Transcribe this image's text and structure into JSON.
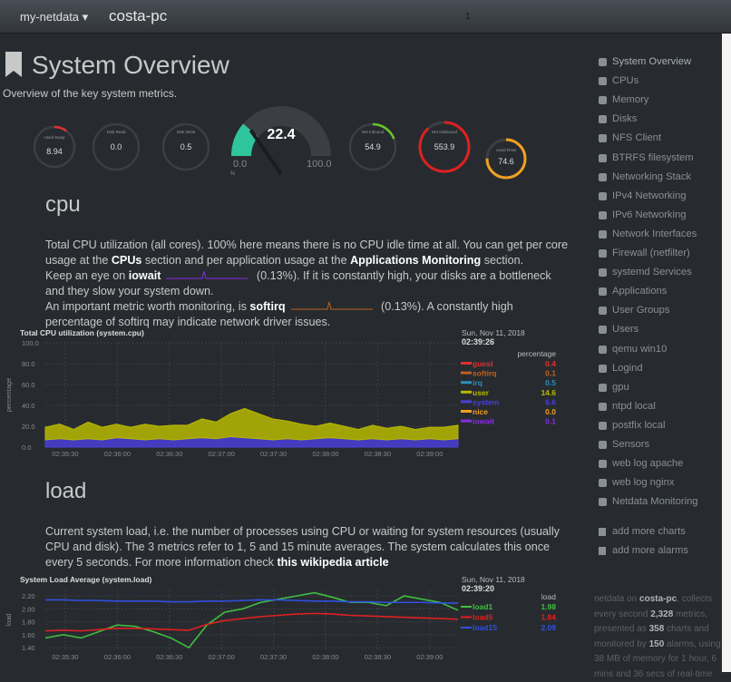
{
  "navbar": {
    "brand": "my-netdata",
    "host": "costa-pc",
    "alarm_count": "1"
  },
  "header": {
    "title": "System Overview",
    "subtitle": "Overview of the key system metrics."
  },
  "gauges": {
    "used_swap": {
      "title": "Used Swap",
      "value": "8.94"
    },
    "disk_read": {
      "title": "Disk Read",
      "value": "0.0"
    },
    "disk_write": {
      "title": "Disk Write",
      "value": "0.5"
    },
    "cpu": {
      "title": "CPU",
      "value": 22.4,
      "min": {
        "value": 0,
        "label": "0.0"
      },
      "max": {
        "value": 100,
        "label": "100.0"
      },
      "unit": "%",
      "color": "#2fc59d"
    },
    "net_inbound": {
      "title": "Net Inbound",
      "value": "54.9"
    },
    "net_outbound": {
      "title": "Net Outbound",
      "value": "553.9"
    },
    "used_ram": {
      "title": "Used RAM",
      "value": "74.6"
    }
  },
  "cpu_section": {
    "heading": "cpu",
    "paragraphs": [
      [
        {
          "text": "Total CPU utilization (all cores). 100% here means there is no CPU idle time at all. You can get per core usage at the "
        },
        {
          "text": "CPUs",
          "strong": true
        },
        {
          "text": " section and per application usage at the "
        },
        {
          "text": "Applications Monitoring",
          "strong": true
        },
        {
          "text": " section."
        }
      ],
      [
        {
          "text": "Keep an eye on "
        },
        {
          "text": "iowait",
          "strong": true,
          "spark": "#8a2be2"
        },
        {
          "text": " ("
        },
        {
          "text": "0.13%"
        },
        {
          "text": "). If it is constantly high, your disks are a bottleneck and they slow your system down."
        }
      ],
      [
        {
          "text": "An important metric worth monitoring, is "
        },
        {
          "text": "softirq",
          "strong": true,
          "spark": "#c06020"
        },
        {
          "text": " ("
        },
        {
          "text": "0.13%"
        },
        {
          "text": "). A constantly high percentage of softirq may indicate network driver issues."
        }
      ]
    ],
    "chart": {
      "type": "area",
      "title": "Total CPU utilization (system.cpu)",
      "date": "Sun, Nov 11, 2018",
      "time": "02:39:26",
      "units": "percentage",
      "ylabel": "percentage",
      "grid": true,
      "ylim": [
        0,
        100
      ],
      "yticks": [
        {
          "value": 100,
          "label": "100.0"
        },
        {
          "value": 80,
          "label": "80.0"
        },
        {
          "value": 60,
          "label": "60.0"
        },
        {
          "value": 40,
          "label": "40.0"
        },
        {
          "value": 20,
          "label": "20.0"
        },
        {
          "value": 0,
          "label": "0.0"
        }
      ],
      "categories": [
        "02:35:30",
        "02:36:00",
        "02:36:30",
        "02:37:00",
        "02:37:30",
        "02:38:00",
        "02:38:30",
        "02:39:00"
      ],
      "series": [
        {
          "name": "guest",
          "color": "#e03030",
          "current": "0.4"
        },
        {
          "name": "softirq",
          "color": "#c06020",
          "current": "0.1"
        },
        {
          "name": "irq",
          "color": "#2a8fbd",
          "current": "0.5"
        },
        {
          "name": "user",
          "color": "#b8b800",
          "current": "14.6",
          "values": [
            12,
            14,
            10,
            16,
            12,
            13,
            11,
            15,
            12,
            14,
            13,
            18,
            16,
            22,
            28,
            24,
            20,
            17,
            15,
            12,
            14,
            12,
            10,
            13,
            11,
            12,
            10,
            11,
            12,
            13
          ]
        },
        {
          "name": "system",
          "color": "#4a40d8",
          "current": "6.6",
          "values": [
            7,
            8,
            7,
            8,
            7,
            9,
            8,
            7,
            8,
            7,
            8,
            9,
            8,
            10,
            9,
            8,
            7,
            8,
            7,
            8,
            9,
            8,
            7,
            8,
            7,
            8,
            7,
            8,
            7,
            8
          ]
        },
        {
          "name": "nice",
          "color": "#f0a020",
          "current": "0.0"
        },
        {
          "name": "iowait",
          "color": "#8a2be2",
          "current": "0.1"
        }
      ]
    }
  },
  "load_section": {
    "heading": "load",
    "paragraphs": [
      [
        {
          "text": "Current system load, i.e. the number of processes using CPU or waiting for system resources (usually CPU and disk). The 3 metrics refer to 1, 5 and 15 minute averages. The system calculates this once every 5 seconds. For more information check "
        },
        {
          "text": "this wikipedia article",
          "strong": true
        }
      ]
    ],
    "chart": {
      "type": "line",
      "title": "System Load Average (system.load)",
      "date": "Sun, Nov 11, 2018",
      "time": "02:39:20",
      "units": "load",
      "ylabel": "load",
      "grid": true,
      "ylim": [
        1.36,
        2.3
      ],
      "yticks": [
        {
          "value": 2.2,
          "label": "2.20"
        },
        {
          "value": 2,
          "label": "2.00"
        },
        {
          "value": 1.8,
          "label": "1.80"
        },
        {
          "value": 1.6,
          "label": "1.60"
        },
        {
          "value": 1.4,
          "label": "1.40"
        }
      ],
      "categories": [
        "02:35:30",
        "02:36:00",
        "02:36:30",
        "02:37:00",
        "02:37:30",
        "02:38:00",
        "02:38:30",
        "02:39:00"
      ],
      "series": [
        {
          "name": "load1",
          "color": "#3fbf3f",
          "current": "1.98",
          "values": [
            1.55,
            1.6,
            1.55,
            1.65,
            1.75,
            1.73,
            1.65,
            1.55,
            1.4,
            1.75,
            1.95,
            2.0,
            2.1,
            2.15,
            2.2,
            2.25,
            2.18,
            2.1,
            2.1,
            2.05,
            2.2,
            2.15,
            2.1,
            1.98
          ]
        },
        {
          "name": "load5",
          "color": "#e02020",
          "current": "1.84",
          "values": [
            1.66,
            1.67,
            1.66,
            1.68,
            1.7,
            1.7,
            1.69,
            1.68,
            1.67,
            1.76,
            1.82,
            1.85,
            1.88,
            1.9,
            1.92,
            1.93,
            1.92,
            1.9,
            1.89,
            1.88,
            1.87,
            1.86,
            1.85,
            1.84
          ]
        },
        {
          "name": "load15",
          "color": "#3050e0",
          "current": "2.09",
          "values": [
            2.14,
            2.14,
            2.13,
            2.13,
            2.12,
            2.12,
            2.12,
            2.11,
            2.11,
            2.12,
            2.12,
            2.13,
            2.14,
            2.14,
            2.13,
            2.12,
            2.12,
            2.11,
            2.11,
            2.1,
            2.1,
            2.1,
            2.09,
            2.09
          ]
        }
      ]
    }
  },
  "sidebar": {
    "items": [
      "System Overview",
      "CPUs",
      "Memory",
      "Disks",
      "NFS Client",
      "BTRFS filesystem",
      "Networking Stack",
      "IPv4 Networking",
      "IPv6 Networking",
      "Network Interfaces",
      "Firewall (netfilter)",
      "systemd Services",
      "Applications",
      "User Groups",
      "Users",
      "qemu win10",
      "Logind",
      "gpu",
      "ntpd local",
      "postfix local",
      "Sensors",
      "web log apache",
      "web log nginx",
      "Netdata Monitoring"
    ],
    "actions": [
      "add more charts",
      "add more alarms"
    ],
    "footer": [
      {
        "text": "netdata on "
      },
      {
        "text": "costa-pc",
        "strong": true
      },
      {
        "text": ", collects every second "
      },
      {
        "text": "2,328",
        "strong": true
      },
      {
        "text": " metrics, presented as "
      },
      {
        "text": "358",
        "strong": true
      },
      {
        "text": " charts and monitored by "
      },
      {
        "text": "150",
        "strong": true
      },
      {
        "text": " alarms, using 38 MB of memory for 1 hour, 6 mins and 36 secs of real-time"
      }
    ]
  }
}
